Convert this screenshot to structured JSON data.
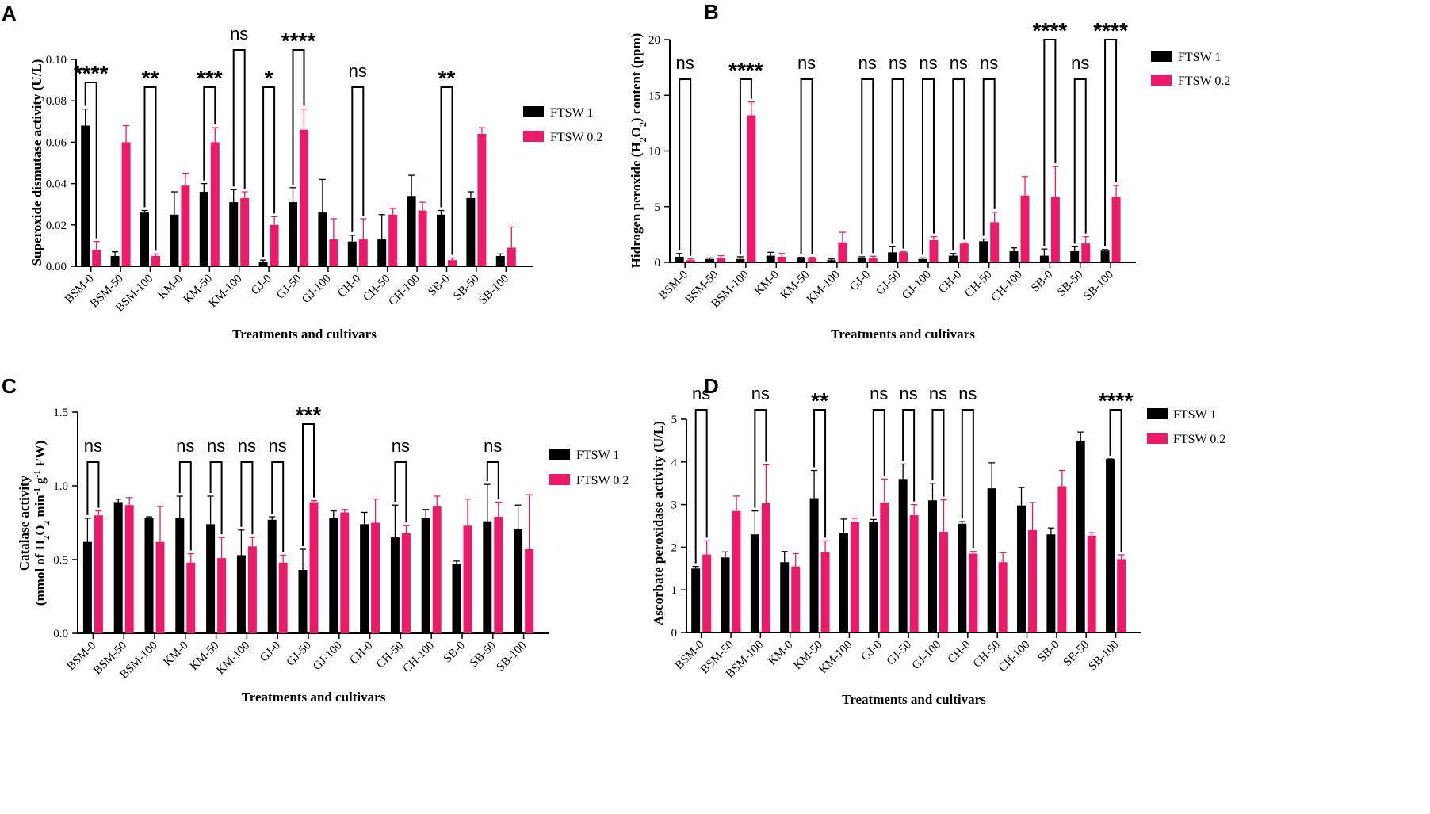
{
  "figure_letters": [
    "A",
    "B",
    "C",
    "D"
  ],
  "colors": {
    "series1": "#000000",
    "series2": "#EC1B6A"
  },
  "chart_data": [
    {
      "panel": "A",
      "type": "bar",
      "title": "",
      "xlabel": "Treatments and cultivars",
      "ylabel": "Superoxide dismutase activity (U/L)",
      "ylim": [
        0,
        0.1
      ],
      "yticks": [
        "0.00",
        "0.02",
        "0.04",
        "0.06",
        "0.08",
        "0.10"
      ],
      "categories": [
        "BSM-0",
        "BSM-50",
        "BSM-100",
        "KM-0",
        "KM-50",
        "KM-100",
        "GJ-0",
        "GJ-50",
        "GJ-100",
        "CH-0",
        "CH-50",
        "CH-100",
        "SB-0",
        "SB-50",
        "SB-100"
      ],
      "series": [
        {
          "name": "FTSW 1",
          "values": [
            0.068,
            0.005,
            0.026,
            0.025,
            0.036,
            0.031,
            0.002,
            0.031,
            0.026,
            0.012,
            0.013,
            0.034,
            0.025,
            0.033,
            0.005
          ],
          "errors": [
            0.008,
            0.002,
            0.001,
            0.011,
            0.004,
            0.006,
            0.001,
            0.007,
            0.016,
            0.003,
            0.012,
            0.01,
            0.002,
            0.003,
            0.001
          ]
        },
        {
          "name": "FTSW 0.2",
          "values": [
            0.008,
            0.06,
            0.005,
            0.039,
            0.06,
            0.033,
            0.02,
            0.066,
            0.013,
            0.013,
            0.025,
            0.027,
            0.003,
            0.064,
            0.009
          ],
          "errors": [
            0.004,
            0.008,
            0.001,
            0.006,
            0.007,
            0.003,
            0.004,
            0.01,
            0.01,
            0.01,
            0.003,
            0.004,
            0.001,
            0.003,
            0.01
          ]
        }
      ],
      "significance": [
        {
          "category": "BSM-0",
          "label": "****"
        },
        {
          "category": "BSM-100",
          "label": "**"
        },
        {
          "category": "KM-50",
          "label": "***"
        },
        {
          "category": "KM-100",
          "label": "ns"
        },
        {
          "category": "GJ-0",
          "label": "*"
        },
        {
          "category": "GJ-50",
          "label": "****"
        },
        {
          "category": "CH-0",
          "label": "ns"
        },
        {
          "category": "SB-0",
          "label": "**"
        }
      ],
      "legend": "right"
    },
    {
      "panel": "B",
      "type": "bar",
      "title": "",
      "xlabel": "Treatments and cultivars",
      "ylabel_parts": [
        "Hidrogen peroxide (H",
        "2",
        "O",
        "2",
        ") content (ppm)"
      ],
      "ylim": [
        0,
        20
      ],
      "yticks": [
        "0",
        "5",
        "10",
        "15",
        "20"
      ],
      "categories": [
        "BSM-0",
        "BSM-50",
        "BSM-100",
        "KM-0",
        "KM-50",
        "KM-100",
        "GJ-0",
        "GJ-50",
        "GJ-100",
        "CH-0",
        "CH-50",
        "CH-100",
        "SB-0",
        "SB-50",
        "SB-100"
      ],
      "series": [
        {
          "name": "FTSW 1",
          "values": [
            0.5,
            0.3,
            0.3,
            0.6,
            0.35,
            0.2,
            0.4,
            0.9,
            0.3,
            0.6,
            1.9,
            1.0,
            0.6,
            1.0,
            1.05
          ],
          "errors": [
            0.3,
            0.1,
            0.2,
            0.3,
            0.1,
            0.1,
            0.1,
            0.5,
            0.1,
            0.2,
            0.2,
            0.3,
            0.6,
            0.4,
            0.1
          ]
        },
        {
          "name": "FTSW 0.2",
          "values": [
            0.2,
            0.4,
            13.2,
            0.5,
            0.35,
            1.8,
            0.35,
            0.9,
            2.0,
            1.7,
            3.6,
            6.0,
            5.9,
            1.7,
            5.9
          ],
          "errors": [
            0.1,
            0.2,
            1.2,
            0.3,
            0.1,
            0.9,
            0.2,
            0.05,
            0.3,
            0.05,
            0.9,
            1.7,
            2.7,
            0.6,
            1.0
          ]
        }
      ],
      "significance": [
        {
          "category": "BSM-0",
          "label": "ns"
        },
        {
          "category": "BSM-100",
          "label": "****"
        },
        {
          "category": "KM-50",
          "label": "ns"
        },
        {
          "category": "GJ-0",
          "label": "ns"
        },
        {
          "category": "GJ-50",
          "label": "ns"
        },
        {
          "category": "GJ-100",
          "label": "ns"
        },
        {
          "category": "CH-0",
          "label": "ns"
        },
        {
          "category": "CH-50",
          "label": "ns"
        },
        {
          "category": "SB-0",
          "label": "****"
        },
        {
          "category": "SB-50",
          "label": "ns"
        },
        {
          "category": "SB-100",
          "label": "****"
        }
      ],
      "legend": "top-right"
    },
    {
      "panel": "C",
      "type": "bar",
      "title": "",
      "xlabel": "Treatments and cultivars",
      "ylabel_lines": [
        "Catalase activity",
        "(mmol of H2O2 min-1 g-1 FW)"
      ],
      "ylim": [
        0,
        1.5
      ],
      "yticks": [
        "0.0",
        "0.5",
        "1.0",
        "1.5"
      ],
      "categories": [
        "BSM-0",
        "BSM-50",
        "BSM-100",
        "KM-0",
        "KM-50",
        "KM-100",
        "GJ-0",
        "GJ-50",
        "GJ-100",
        "CH-0",
        "CH-50",
        "CH-100",
        "SB-0",
        "SB-50",
        "SB-100"
      ],
      "series": [
        {
          "name": "FTSW 1",
          "values": [
            0.62,
            0.89,
            0.78,
            0.78,
            0.74,
            0.53,
            0.77,
            0.43,
            0.78,
            0.74,
            0.65,
            0.78,
            0.47,
            0.76,
            0.71
          ],
          "errors": [
            0.16,
            0.02,
            0.01,
            0.15,
            0.19,
            0.17,
            0.02,
            0.14,
            0.05,
            0.08,
            0.22,
            0.06,
            0.02,
            0.25,
            0.16
          ]
        },
        {
          "name": "FTSW 0.2",
          "values": [
            0.8,
            0.87,
            0.62,
            0.48,
            0.51,
            0.59,
            0.48,
            0.89,
            0.82,
            0.75,
            0.68,
            0.86,
            0.73,
            0.79,
            0.57
          ],
          "errors": [
            0.03,
            0.05,
            0.24,
            0.06,
            0.14,
            0.06,
            0.05,
            0.01,
            0.02,
            0.16,
            0.05,
            0.07,
            0.18,
            0.1,
            0.37
          ]
        }
      ],
      "significance": [
        {
          "category": "BSM-0",
          "label": "ns"
        },
        {
          "category": "KM-0",
          "label": "ns"
        },
        {
          "category": "KM-50",
          "label": "ns"
        },
        {
          "category": "KM-100",
          "label": "ns"
        },
        {
          "category": "GJ-0",
          "label": "ns"
        },
        {
          "category": "GJ-50",
          "label": "***"
        },
        {
          "category": "CH-50",
          "label": "ns"
        },
        {
          "category": "SB-50",
          "label": "ns"
        }
      ],
      "legend": "right"
    },
    {
      "panel": "D",
      "type": "bar",
      "title": "",
      "xlabel": "Treatments and cultivars",
      "ylabel": "Ascorbate peroxidase activity (U/L)",
      "ylim": [
        0,
        5
      ],
      "yticks": [
        "0",
        "1",
        "2",
        "3",
        "4",
        "5"
      ],
      "categories": [
        "BSM-0",
        "BSM-50",
        "BSM-100",
        "KM-0",
        "KM-50",
        "KM-100",
        "GJ-0",
        "GJ-50",
        "GJ-100",
        "CH-0",
        "CH-50",
        "CH-100",
        "SB-0",
        "SB-50",
        "SB-100"
      ],
      "series": [
        {
          "name": "FTSW 1",
          "values": [
            1.5,
            1.76,
            2.3,
            1.65,
            3.15,
            2.33,
            2.6,
            3.6,
            3.1,
            2.55,
            3.38,
            2.98,
            2.3,
            4.5,
            4.07
          ],
          "errors": [
            0.05,
            0.13,
            0.55,
            0.25,
            0.65,
            0.33,
            0.05,
            0.35,
            0.4,
            0.05,
            0.6,
            0.42,
            0.15,
            0.2,
            0.0
          ]
        },
        {
          "name": "FTSW 0.2",
          "values": [
            1.83,
            2.85,
            3.03,
            1.55,
            1.88,
            2.6,
            3.05,
            2.75,
            2.36,
            1.85,
            1.65,
            2.4,
            3.43,
            2.27,
            1.72
          ],
          "errors": [
            0.32,
            0.35,
            0.9,
            0.3,
            0.27,
            0.08,
            0.55,
            0.25,
            0.75,
            0.05,
            0.22,
            0.65,
            0.37,
            0.07,
            0.1
          ]
        }
      ],
      "significance": [
        {
          "category": "BSM-0",
          "label": "ns"
        },
        {
          "category": "BSM-100",
          "label": "ns"
        },
        {
          "category": "KM-50",
          "label": "**"
        },
        {
          "category": "GJ-0",
          "label": "ns"
        },
        {
          "category": "GJ-50",
          "label": "ns"
        },
        {
          "category": "GJ-100",
          "label": "ns"
        },
        {
          "category": "CH-0",
          "label": "ns"
        },
        {
          "category": "SB-100",
          "label": "****"
        }
      ],
      "legend": "top-right"
    }
  ]
}
